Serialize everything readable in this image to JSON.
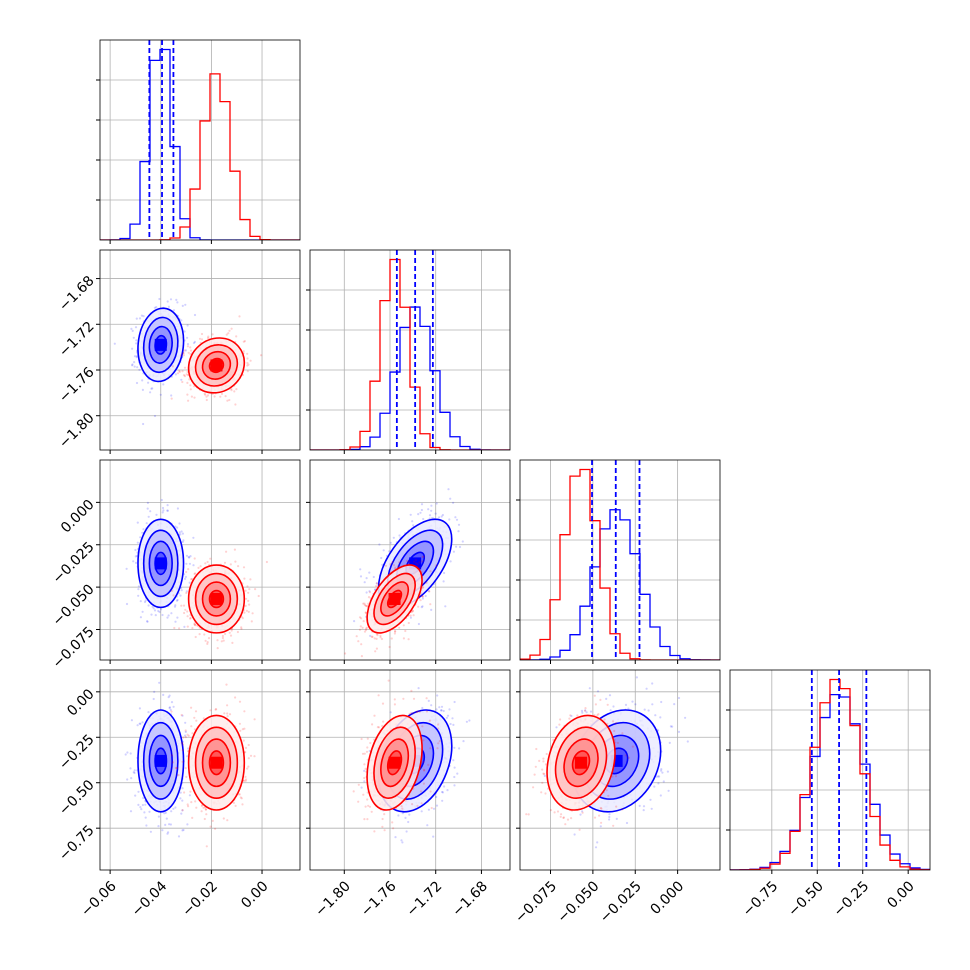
{
  "chart_data": {
    "type": "corner",
    "grid": true,
    "series": [
      {
        "color": "#0000ff",
        "mean": [
          -0.04,
          -1.738,
          -0.036,
          -0.38
        ],
        "std": [
          0.0045,
          0.016,
          0.013,
          0.14
        ]
      },
      {
        "color": "#ff0000",
        "mean": [
          -0.018,
          -1.756,
          -0.057,
          -0.39
        ],
        "std": [
          0.0055,
          0.012,
          0.01,
          0.13
        ]
      }
    ],
    "correlations": [
      [
        1,
        0.1,
        0.0,
        0.0
      ],
      [
        0.1,
        1,
        0.55,
        0.3
      ],
      [
        0.0,
        0.55,
        1,
        0.2
      ],
      [
        0.0,
        0.3,
        0.2,
        1
      ]
    ],
    "quantile_lines": [
      [
        -0.0445,
        -0.0395,
        -0.035
      ],
      [
        -1.754,
        -1.738,
        -1.7225
      ],
      [
        -0.0505,
        -0.0365,
        -0.0225
      ],
      [
        -0.53,
        -0.38,
        -0.23
      ]
    ],
    "axes": [
      {
        "range": [
          -0.064,
          0.015
        ],
        "ticks": [
          -0.06,
          -0.04,
          -0.02,
          0.0
        ],
        "tick_labels": [
          "−0.06",
          "−0.04",
          "−0.02",
          "0.00"
        ]
      },
      {
        "range": [
          -1.83,
          -1.655
        ],
        "ticks": [
          -1.8,
          -1.76,
          -1.72,
          -1.68
        ],
        "tick_labels": [
          "−1.80",
          "−1.76",
          "−1.72",
          "−1.68"
        ]
      },
      {
        "range": [
          -0.093,
          0.025
        ],
        "ticks": [
          -0.075,
          -0.05,
          -0.025,
          0.0
        ],
        "tick_labels": [
          "−0.075",
          "−0.050",
          "−0.025",
          "0.000"
        ]
      },
      {
        "range": [
          -0.98,
          0.12
        ],
        "ticks": [
          -0.75,
          -0.5,
          -0.25,
          0.0
        ],
        "tick_labels": [
          "−0.75",
          "−0.50",
          "−0.25",
          "0.00"
        ]
      }
    ]
  }
}
